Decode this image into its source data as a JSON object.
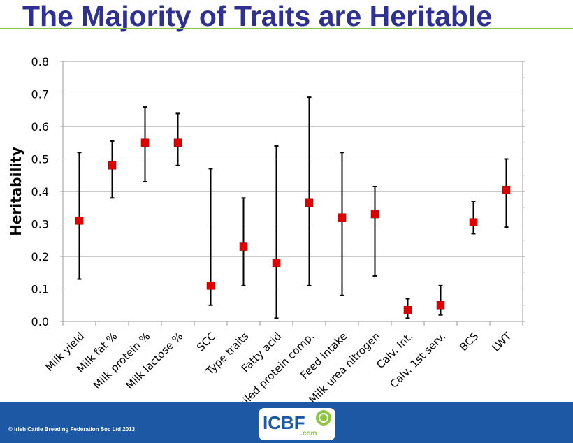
{
  "slide": {
    "title": "The Majority of Traits are Heritable",
    "copyright": "© Irish Cattle Breeding Federation Soc Ltd 2013",
    "logo_text": "ICBF",
    "logo_sub": ".com"
  },
  "colors": {
    "title": "#2e3192",
    "footer": "#1c58a3",
    "marker": "#e00000",
    "accent": "#8dc63f"
  },
  "chart_data": {
    "type": "scatter",
    "title": "",
    "xlabel": "",
    "ylabel": "Heritability",
    "ylim": [
      0,
      0.8
    ],
    "yticks": [
      "0.0",
      "0.1",
      "0.2",
      "0.3",
      "0.4",
      "0.5",
      "0.6",
      "0.7",
      "0.8"
    ],
    "grid": true,
    "legend": "none",
    "categories": [
      "Milk yield",
      "Milk fat %",
      "Milk protein %",
      "Milk lactose %",
      "SCC",
      "Type traits",
      "Fatty acid",
      "Detailed protein comp.",
      "Feed intake",
      "Milk urea nitrogen",
      "Calv. Int.",
      "Calv. 1st serv.",
      "BCS",
      "LWT"
    ],
    "series": [
      {
        "values": [
          0.31,
          0.48,
          0.55,
          0.55,
          0.11,
          0.23,
          0.18,
          0.365,
          0.32,
          0.33,
          0.035,
          0.05,
          0.305,
          0.405
        ],
        "low": [
          0.13,
          0.38,
          0.43,
          0.48,
          0.05,
          0.11,
          0.01,
          0.11,
          0.08,
          0.14,
          0.01,
          0.02,
          0.27,
          0.29
        ],
        "high": [
          0.52,
          0.555,
          0.66,
          0.64,
          0.47,
          0.38,
          0.54,
          0.69,
          0.52,
          0.415,
          0.07,
          0.11,
          0.37,
          0.5
        ]
      }
    ]
  }
}
